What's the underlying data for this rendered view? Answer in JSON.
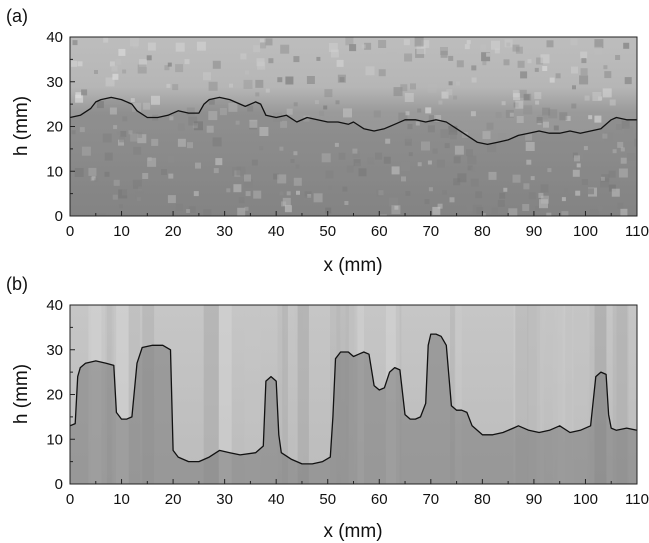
{
  "chart_data": [
    {
      "type": "line",
      "panel_label": "(a)",
      "xlabel": "x (mm)",
      "ylabel": "h (mm)",
      "xlim": [
        0,
        110
      ],
      "ylim": [
        0,
        40
      ],
      "xticks": [
        0,
        10,
        20,
        30,
        40,
        50,
        60,
        70,
        80,
        90,
        100,
        110
      ],
      "yticks": [
        0,
        10,
        20,
        30,
        40
      ],
      "grid": false,
      "background": "grayscale photograph of granular interface (light gray above, darker gray below)",
      "series": [
        {
          "x": [
            0,
            2,
            4,
            5,
            6,
            8,
            10,
            12,
            13,
            15,
            17,
            19,
            21,
            23,
            25,
            26,
            27,
            29,
            31,
            33,
            34,
            36,
            37,
            38,
            40,
            42,
            44,
            46,
            48,
            50,
            52,
            54,
            55,
            57,
            59,
            61,
            63,
            65,
            67,
            69,
            71,
            73,
            75,
            77,
            79,
            81,
            83,
            85,
            87,
            89,
            91,
            93,
            95,
            97,
            99,
            101,
            103,
            105,
            106,
            108,
            110
          ],
          "y": [
            22,
            22.5,
            24,
            25.5,
            26,
            26.5,
            26,
            25,
            23.5,
            22,
            22,
            22.5,
            23.5,
            23,
            23,
            25,
            26,
            26.5,
            26,
            25,
            24.5,
            25.5,
            25,
            22.5,
            22,
            22.5,
            21,
            22,
            21.5,
            21,
            21,
            20.5,
            21,
            19.5,
            19,
            19.5,
            20.5,
            21.5,
            21.5,
            21,
            21.5,
            21,
            19.5,
            18,
            16.5,
            16,
            16.5,
            17,
            18,
            18.5,
            19,
            18.5,
            18.5,
            19,
            18.5,
            19,
            19.5,
            21.5,
            22,
            21.5,
            21.5
          ]
        }
      ]
    },
    {
      "type": "line",
      "panel_label": "(b)",
      "xlabel": "x (mm)",
      "ylabel": "h (mm)",
      "xlim": [
        0,
        110
      ],
      "ylim": [
        0,
        40
      ],
      "xticks": [
        0,
        10,
        20,
        30,
        40,
        50,
        60,
        70,
        80,
        90,
        100,
        110
      ],
      "yticks": [
        0,
        10,
        20,
        30,
        40
      ],
      "grid": false,
      "background": "grayscale photograph with vertical columns of dark granular material",
      "series": [
        {
          "x": [
            0,
            1,
            1.5,
            2,
            3,
            5,
            7,
            8.5,
            9,
            10,
            11,
            12,
            13,
            14,
            16,
            18,
            19.5,
            20,
            21,
            23,
            25,
            27,
            29,
            31,
            33,
            36,
            37.5,
            38,
            39,
            40,
            40.5,
            41,
            43,
            45,
            47,
            49,
            50.5,
            51,
            51.5,
            52.5,
            54,
            55,
            56,
            57,
            58,
            59,
            60,
            61,
            62,
            63,
            64,
            65,
            66,
            67,
            68,
            69,
            69.5,
            70,
            71,
            72,
            73,
            74,
            75,
            76,
            77,
            78,
            80,
            82,
            84,
            86,
            87,
            89,
            91,
            93,
            95,
            97,
            99,
            101,
            102,
            103,
            104,
            104.5,
            105,
            106,
            108,
            110
          ],
          "y": [
            13,
            13.5,
            24,
            26,
            27,
            27.5,
            27,
            26.5,
            16,
            14.5,
            14.5,
            15,
            27,
            30.5,
            31,
            31,
            30,
            7.5,
            6,
            5,
            5,
            6,
            7.5,
            7,
            6.5,
            7,
            8.5,
            23,
            24,
            23,
            11,
            7,
            5.5,
            4.5,
            4.5,
            5,
            6,
            15,
            28,
            29.5,
            29.5,
            28.5,
            29,
            29.5,
            29,
            22,
            21,
            21.5,
            25,
            26,
            25.5,
            15.5,
            14.5,
            14.5,
            15,
            18,
            31,
            33.5,
            33.5,
            33,
            31,
            17.5,
            16.5,
            16.5,
            16,
            13,
            11,
            11,
            11.5,
            12.5,
            13,
            12,
            11.5,
            12,
            13,
            11.5,
            12,
            13,
            24,
            25,
            24.5,
            15.5,
            12.5,
            12,
            12.5,
            12
          ]
        }
      ]
    }
  ]
}
